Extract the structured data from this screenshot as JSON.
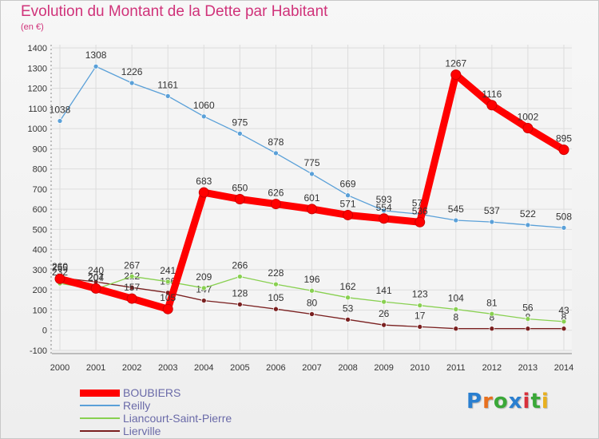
{
  "header": {
    "title": "Evolution du Montant de la Dette par Habitant",
    "subtitle": "(en €)"
  },
  "logo": {
    "text": "Proxiti",
    "colors": [
      "#2a7fd0",
      "#e8701e",
      "#3aa838",
      "#2a7fd0",
      "#d8303a",
      "#3aa838",
      "#e8b01e"
    ]
  },
  "chart_data": {
    "type": "line",
    "title": "Evolution du Montant de la Dette par Habitant",
    "subtitle": "(en €)",
    "xlabel": "",
    "ylabel": "",
    "x": [
      2000,
      2001,
      2002,
      2003,
      2004,
      2005,
      2006,
      2007,
      2008,
      2009,
      2010,
      2011,
      2012,
      2013,
      2014
    ],
    "ylim": [
      -100,
      1400
    ],
    "yticks": [
      -100,
      0,
      100,
      200,
      300,
      400,
      500,
      600,
      700,
      800,
      900,
      1000,
      1100,
      1200,
      1300,
      1400
    ],
    "grid": true,
    "legend_position": "bottom",
    "series": [
      {
        "name": "BOUBIERS",
        "color": "#ff0000",
        "emphasis": true,
        "segments": [
          [
            {
              "x": 2000,
              "y": 255
            },
            {
              "x": 2001,
              "y": 207
            },
            {
              "x": 2002,
              "y": 157
            },
            {
              "x": 2003,
              "y": 105
            },
            {
              "x": 2004,
              "y": 683
            },
            {
              "x": 2005,
              "y": 650
            },
            {
              "x": 2006,
              "y": 626
            },
            {
              "x": 2007,
              "y": 601
            },
            {
              "x": 2008,
              "y": 571
            },
            {
              "x": 2009,
              "y": 554
            },
            {
              "x": 2010,
              "y": 536
            }
          ],
          [
            {
              "x": 2011,
              "y": 1267
            },
            {
              "x": 2012,
              "y": 1116
            },
            {
              "x": 2013,
              "y": 1002
            },
            {
              "x": 2014,
              "y": 895
            }
          ]
        ],
        "joins": [
          [
            {
              "x": 2010,
              "y": 536
            },
            {
              "x": 2011,
              "y": 1267
            }
          ]
        ],
        "labels": [
          "255",
          "207",
          "157",
          "105",
          "683",
          "650",
          "626",
          "601",
          "571",
          "554",
          "536",
          "1267",
          "1116",
          "1002",
          "895"
        ]
      },
      {
        "name": "Reilly",
        "color": "#5aa0d8",
        "values": [
          1038,
          1308,
          1226,
          1161,
          1060,
          975,
          878,
          775,
          669,
          593,
          575,
          545,
          537,
          522,
          508
        ],
        "labels": [
          "1038",
          "1308",
          "1226",
          "1161",
          "1060",
          "975",
          "878",
          "775",
          "669",
          "593",
          "575",
          "545",
          "537",
          "522",
          "508"
        ]
      },
      {
        "name": "Liancourt-Saint-Pierre",
        "color": "#88d050",
        "values": [
          232,
          204,
          267,
          241,
          209,
          266,
          228,
          196,
          162,
          141,
          123,
          104,
          81,
          56,
          43
        ],
        "labels": [
          "232",
          "204",
          "267",
          "241",
          "209",
          "266",
          "228",
          "196",
          "162",
          "141",
          "123",
          "104",
          "81",
          "56",
          "43"
        ]
      },
      {
        "name": "Lierville",
        "color": "#7a2020",
        "values": [
          260,
          240,
          212,
          186,
          147,
          128,
          105,
          80,
          53,
          26,
          17,
          8,
          8,
          8,
          8
        ],
        "labels": [
          "260",
          "240",
          "212",
          "186",
          "147",
          "128",
          "105",
          "80",
          "53",
          "26",
          "17",
          "8",
          "8",
          "8",
          "8"
        ]
      }
    ]
  }
}
